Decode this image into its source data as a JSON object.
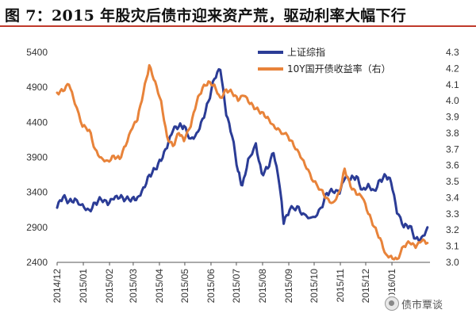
{
  "title": "图 7：2015 年股灾后债市迎来资产荒，驱动利率大幅下行",
  "watermark": "债市覃谈",
  "chart_data": {
    "type": "line",
    "x_dates": [
      "2014-12-01",
      "2014-12-15",
      "2015-01-01",
      "2015-01-15",
      "2015-02-01",
      "2015-02-15",
      "2015-03-01",
      "2015-03-15",
      "2015-04-01",
      "2015-04-15",
      "2015-05-01",
      "2015-05-15",
      "2015-06-01",
      "2015-06-15",
      "2015-07-01",
      "2015-07-15",
      "2015-08-01",
      "2015-08-15",
      "2015-09-01",
      "2015-09-15",
      "2015-10-01",
      "2015-10-15",
      "2015-11-01",
      "2015-11-15",
      "2015-12-01",
      "2015-12-15",
      "2016-01-01",
      "2016-01-15",
      "2016-02-01"
    ],
    "x_tick_labels": [
      "2014/12",
      "2015/01",
      "2015/02",
      "2015/03",
      "2015/04",
      "2015/05",
      "2015/06",
      "2015/07",
      "2015/08",
      "2015/09",
      "2015/10",
      "2015/11",
      "2015/12",
      "2016/01"
    ],
    "x_tick_dates": [
      "2014-12-01",
      "2015-01-01",
      "2015-02-01",
      "2015-03-01",
      "2015-04-01",
      "2015-05-01",
      "2015-06-01",
      "2015-07-01",
      "2015-08-01",
      "2015-09-01",
      "2015-10-01",
      "2015-11-01",
      "2015-12-01",
      "2016-01-01"
    ],
    "x_range": [
      "2014-12-01",
      "2016-02-15"
    ],
    "y_left": {
      "ticks": [
        2400,
        2900,
        3400,
        3900,
        4400,
        4900,
        5400
      ],
      "range": [
        2400,
        5400
      ]
    },
    "y_right": {
      "ticks": [
        "3.0",
        "3.1",
        "3.2",
        "3.3",
        "3.4",
        "3.5",
        "3.6",
        "3.7",
        "3.8",
        "3.9",
        "4.0",
        "4.1",
        "4.2",
        "4.3"
      ],
      "range": [
        3.0,
        4.3
      ]
    },
    "series": [
      {
        "name": "上证综指",
        "axis": "left",
        "color": "#2b3c96",
        "points": [
          [
            "2014-12-01",
            3180
          ],
          [
            "2014-12-08",
            3330
          ],
          [
            "2014-12-15",
            3270
          ],
          [
            "2014-12-22",
            3310
          ],
          [
            "2014-12-31",
            3230
          ],
          [
            "2015-01-08",
            3150
          ],
          [
            "2015-01-15",
            3250
          ],
          [
            "2015-01-22",
            3300
          ],
          [
            "2015-01-30",
            3220
          ],
          [
            "2015-02-06",
            3300
          ],
          [
            "2015-02-13",
            3320
          ],
          [
            "2015-02-20",
            3300
          ],
          [
            "2015-02-28",
            3320
          ],
          [
            "2015-03-06",
            3330
          ],
          [
            "2015-03-13",
            3470
          ],
          [
            "2015-03-20",
            3650
          ],
          [
            "2015-03-27",
            3730
          ],
          [
            "2015-04-03",
            3850
          ],
          [
            "2015-04-10",
            4030
          ],
          [
            "2015-04-17",
            4280
          ],
          [
            "2015-04-24",
            4340
          ],
          [
            "2015-04-30",
            4350
          ],
          [
            "2015-05-08",
            4170
          ],
          [
            "2015-05-15",
            4250
          ],
          [
            "2015-05-22",
            4450
          ],
          [
            "2015-05-29",
            4700
          ],
          [
            "2015-06-05",
            5020
          ],
          [
            "2015-06-12",
            5150
          ],
          [
            "2015-06-19",
            4500
          ],
          [
            "2015-06-26",
            4200
          ],
          [
            "2015-07-03",
            3700
          ],
          [
            "2015-07-08",
            3500
          ],
          [
            "2015-07-15",
            3880
          ],
          [
            "2015-07-24",
            4100
          ],
          [
            "2015-07-31",
            3670
          ],
          [
            "2015-08-07",
            3740
          ],
          [
            "2015-08-14",
            3960
          ],
          [
            "2015-08-21",
            3500
          ],
          [
            "2015-08-26",
            2950
          ],
          [
            "2015-09-02",
            3150
          ],
          [
            "2015-09-11",
            3200
          ],
          [
            "2015-09-18",
            3100
          ],
          [
            "2015-09-30",
            3050
          ],
          [
            "2015-10-09",
            3180
          ],
          [
            "2015-10-16",
            3390
          ],
          [
            "2015-10-23",
            3410
          ],
          [
            "2015-10-31",
            3380
          ],
          [
            "2015-11-06",
            3590
          ],
          [
            "2015-11-13",
            3580
          ],
          [
            "2015-11-20",
            3630
          ],
          [
            "2015-11-27",
            3440
          ],
          [
            "2015-12-04",
            3520
          ],
          [
            "2015-12-11",
            3430
          ],
          [
            "2015-12-18",
            3580
          ],
          [
            "2015-12-25",
            3630
          ],
          [
            "2015-12-31",
            3540
          ],
          [
            "2016-01-07",
            3100
          ],
          [
            "2016-01-15",
            2900
          ],
          [
            "2016-01-22",
            2920
          ],
          [
            "2016-01-29",
            2740
          ],
          [
            "2016-02-05",
            2760
          ],
          [
            "2016-02-12",
            2900
          ]
        ]
      },
      {
        "name": "10Y国开债收益率（右）",
        "axis": "right",
        "color": "#e8833a",
        "points": [
          [
            "2014-12-01",
            4.05
          ],
          [
            "2014-12-08",
            4.06
          ],
          [
            "2014-12-15",
            4.1
          ],
          [
            "2014-12-22",
            3.98
          ],
          [
            "2014-12-31",
            3.84
          ],
          [
            "2015-01-08",
            3.82
          ],
          [
            "2015-01-15",
            3.7
          ],
          [
            "2015-01-22",
            3.65
          ],
          [
            "2015-01-30",
            3.63
          ],
          [
            "2015-02-06",
            3.66
          ],
          [
            "2015-02-13",
            3.64
          ],
          [
            "2015-02-20",
            3.72
          ],
          [
            "2015-02-28",
            3.83
          ],
          [
            "2015-03-06",
            3.88
          ],
          [
            "2015-03-13",
            4.05
          ],
          [
            "2015-03-20",
            4.22
          ],
          [
            "2015-03-27",
            4.12
          ],
          [
            "2015-04-03",
            4.0
          ],
          [
            "2015-04-10",
            3.78
          ],
          [
            "2015-04-17",
            3.72
          ],
          [
            "2015-04-24",
            3.8
          ],
          [
            "2015-04-30",
            3.75
          ],
          [
            "2015-05-08",
            3.84
          ],
          [
            "2015-05-15",
            3.99
          ],
          [
            "2015-05-22",
            4.08
          ],
          [
            "2015-05-29",
            4.12
          ],
          [
            "2015-06-05",
            4.1
          ],
          [
            "2015-06-12",
            4.02
          ],
          [
            "2015-06-19",
            4.07
          ],
          [
            "2015-06-26",
            4.05
          ],
          [
            "2015-07-03",
            4.0
          ],
          [
            "2015-07-10",
            4.03
          ],
          [
            "2015-07-17",
            3.98
          ],
          [
            "2015-07-24",
            3.95
          ],
          [
            "2015-07-31",
            3.93
          ],
          [
            "2015-08-07",
            3.9
          ],
          [
            "2015-08-14",
            3.85
          ],
          [
            "2015-08-21",
            3.82
          ],
          [
            "2015-08-31",
            3.78
          ],
          [
            "2015-09-07",
            3.72
          ],
          [
            "2015-09-15",
            3.65
          ],
          [
            "2015-09-22",
            3.58
          ],
          [
            "2015-09-30",
            3.5
          ],
          [
            "2015-10-09",
            3.45
          ],
          [
            "2015-10-16",
            3.4
          ],
          [
            "2015-10-23",
            3.37
          ],
          [
            "2015-10-31",
            3.44
          ],
          [
            "2015-11-06",
            3.58
          ],
          [
            "2015-11-13",
            3.47
          ],
          [
            "2015-11-20",
            3.42
          ],
          [
            "2015-11-27",
            3.4
          ],
          [
            "2015-12-04",
            3.3
          ],
          [
            "2015-12-11",
            3.22
          ],
          [
            "2015-12-18",
            3.15
          ],
          [
            "2015-12-25",
            3.05
          ],
          [
            "2015-12-31",
            3.04
          ],
          [
            "2016-01-07",
            3.02
          ],
          [
            "2016-01-15",
            3.1
          ],
          [
            "2016-01-22",
            3.12
          ],
          [
            "2016-01-29",
            3.09
          ],
          [
            "2016-02-05",
            3.13
          ],
          [
            "2016-02-12",
            3.12
          ]
        ]
      }
    ],
    "legend_position": "top-right",
    "grid": false
  }
}
